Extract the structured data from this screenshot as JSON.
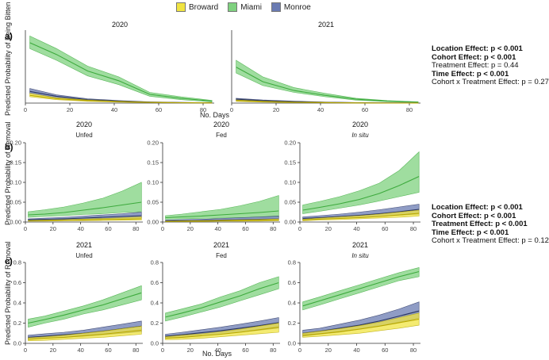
{
  "legend": {
    "items": [
      {
        "label": "Broward",
        "color": "#f0e442"
      },
      {
        "label": "Miami",
        "color": "#7fd17f"
      },
      {
        "label": "Monroe",
        "color": "#6a7bb2"
      }
    ]
  },
  "panel_labels": {
    "a": "a)",
    "b": "b)",
    "c": "c)"
  },
  "axis_labels": {
    "a_ylabel": "Predicted Probability of Being Bitten",
    "b_ylabel": "Predicted Probability of Removal",
    "c_ylabel": "Predicted Probability of Removal",
    "a_xlabel": "No. Days",
    "c_xlabel": "No. Days"
  },
  "stats": {
    "top": [
      {
        "text": "Location Effect: p < 0.001",
        "bold": true
      },
      {
        "text": "Cohort Effect: p < 0.001",
        "bold": true
      },
      {
        "text": "Treatment Effect: p = 0.44",
        "bold": false
      },
      {
        "text": "Time Effect: p < 0.001",
        "bold": true
      },
      {
        "text": "Cohort x Treatment Effect: p = 0.27",
        "bold": false
      }
    ],
    "bottom": [
      {
        "text": "Location Effect: p < 0.001",
        "bold": true
      },
      {
        "text": "Cohort Effect: p < 0.001",
        "bold": true
      },
      {
        "text": "Treatment Effect: p < 0.001",
        "bold": true
      },
      {
        "text": "Time Effect: p < 0.001",
        "bold": true
      },
      {
        "text": "Cohort x Treatment Effect: p = 0.12",
        "bold": false
      }
    ]
  },
  "colors": {
    "Broward": {
      "fill": "#f0e442",
      "line": "#b8a800"
    },
    "Miami": {
      "fill": "#7fd17f",
      "line": "#3daa3d"
    },
    "Monroe": {
      "fill": "#6a7bb2",
      "line": "#2a3560"
    }
  },
  "chart_data": [
    {
      "id": "a-2020",
      "type": "line",
      "title": "2020",
      "subtitle": "",
      "xlabel": "No. Days",
      "ylabel": "Predicted Probability of Being Bitten",
      "xlim": [
        0,
        85
      ],
      "ylim": [
        0,
        0.75
      ],
      "xticks": [
        0,
        20,
        40,
        60,
        80
      ],
      "yticks": [],
      "x": [
        2,
        14,
        28,
        42,
        56,
        70,
        84
      ],
      "series": [
        {
          "name": "Miami",
          "values": [
            0.62,
            0.5,
            0.33,
            0.23,
            0.09,
            0.05,
            0.02
          ],
          "lower": [
            0.56,
            0.44,
            0.28,
            0.19,
            0.07,
            0.035,
            0.012
          ],
          "upper": [
            0.69,
            0.56,
            0.38,
            0.27,
            0.11,
            0.065,
            0.028
          ]
        },
        {
          "name": "Monroe",
          "values": [
            0.12,
            0.07,
            0.035,
            0.02,
            0.01,
            0.005,
            0.003
          ],
          "lower": [
            0.1,
            0.055,
            0.028,
            0.015,
            0.007,
            0.003,
            0.002
          ],
          "upper": [
            0.15,
            0.085,
            0.045,
            0.026,
            0.013,
            0.007,
            0.004
          ]
        },
        {
          "name": "Broward",
          "values": [
            0.08,
            0.045,
            0.025,
            0.014,
            0.007,
            0.004,
            0.002
          ],
          "lower": [
            0.065,
            0.035,
            0.018,
            0.01,
            0.005,
            0.002,
            0.001
          ],
          "upper": [
            0.1,
            0.055,
            0.032,
            0.018,
            0.01,
            0.005,
            0.003
          ]
        }
      ]
    },
    {
      "id": "a-2021",
      "type": "line",
      "title": "2021",
      "subtitle": "",
      "xlabel": "No. Days",
      "ylabel": "",
      "xlim": [
        0,
        85
      ],
      "ylim": [
        0,
        0.75
      ],
      "xticks": [
        0,
        20,
        40,
        60,
        80
      ],
      "yticks": [],
      "x": [
        2,
        14,
        28,
        42,
        56,
        70,
        84
      ],
      "series": [
        {
          "name": "Miami",
          "values": [
            0.37,
            0.22,
            0.13,
            0.08,
            0.04,
            0.02,
            0.01
          ],
          "lower": [
            0.31,
            0.18,
            0.11,
            0.065,
            0.03,
            0.015,
            0.007
          ],
          "upper": [
            0.44,
            0.27,
            0.16,
            0.1,
            0.05,
            0.026,
            0.013
          ]
        },
        {
          "name": "Monroe",
          "values": [
            0.04,
            0.025,
            0.015,
            0.008,
            0.004,
            0.002,
            0.001
          ],
          "lower": [
            0.03,
            0.018,
            0.01,
            0.005,
            0.003,
            0.001,
            0.0005
          ],
          "upper": [
            0.05,
            0.032,
            0.02,
            0.011,
            0.006,
            0.003,
            0.0015
          ]
        },
        {
          "name": "Broward",
          "values": [
            0.025,
            0.015,
            0.008,
            0.005,
            0.002,
            0.001,
            0.0005
          ],
          "lower": [
            0.018,
            0.01,
            0.005,
            0.003,
            0.0015,
            0.0007,
            0.0003
          ],
          "upper": [
            0.032,
            0.02,
            0.011,
            0.007,
            0.003,
            0.0015,
            0.0008
          ]
        }
      ]
    },
    {
      "id": "b-unfed",
      "type": "line",
      "title": "2020",
      "subtitle": "Unfed",
      "xlabel": "",
      "ylabel": "Predicted Probability of Removal",
      "xlim": [
        0,
        85
      ],
      "ylim": [
        0,
        0.2
      ],
      "xticks": [
        0,
        20,
        40,
        60,
        80
      ],
      "yticks": [
        0,
        0.05,
        0.1,
        0.15,
        0.2
      ],
      "x": [
        2,
        14,
        28,
        42,
        56,
        70,
        84
      ],
      "series": [
        {
          "name": "Miami",
          "values": [
            0.018,
            0.02,
            0.024,
            0.03,
            0.036,
            0.043,
            0.05
          ],
          "lower": [
            0.012,
            0.014,
            0.016,
            0.019,
            0.021,
            0.024,
            0.026
          ],
          "upper": [
            0.026,
            0.031,
            0.038,
            0.048,
            0.06,
            0.078,
            0.1
          ]
        },
        {
          "name": "Monroe",
          "values": [
            0.006,
            0.007,
            0.008,
            0.01,
            0.012,
            0.014,
            0.016
          ],
          "lower": [
            0.004,
            0.005,
            0.006,
            0.007,
            0.008,
            0.009,
            0.01
          ],
          "upper": [
            0.008,
            0.01,
            0.012,
            0.015,
            0.018,
            0.021,
            0.025
          ]
        },
        {
          "name": "Broward",
          "values": [
            0.003,
            0.0035,
            0.004,
            0.005,
            0.006,
            0.007,
            0.008
          ],
          "lower": [
            0.002,
            0.0025,
            0.003,
            0.0035,
            0.004,
            0.0045,
            0.005
          ],
          "upper": [
            0.004,
            0.005,
            0.006,
            0.0075,
            0.009,
            0.011,
            0.013
          ]
        }
      ]
    },
    {
      "id": "b-fed",
      "type": "line",
      "title": "2020",
      "subtitle": "Fed",
      "xlabel": "",
      "ylabel": "",
      "xlim": [
        0,
        85
      ],
      "ylim": [
        0,
        0.2
      ],
      "xticks": [
        0,
        20,
        40,
        60,
        80
      ],
      "yticks": [
        0,
        0.05,
        0.1,
        0.15,
        0.2
      ],
      "x": [
        2,
        14,
        28,
        42,
        56,
        70,
        84
      ],
      "series": [
        {
          "name": "Miami",
          "values": [
            0.011,
            0.013,
            0.015,
            0.018,
            0.021,
            0.024,
            0.028
          ],
          "lower": [
            0.007,
            0.008,
            0.009,
            0.01,
            0.011,
            0.012,
            0.013
          ],
          "upper": [
            0.016,
            0.02,
            0.026,
            0.032,
            0.041,
            0.052,
            0.067
          ]
        },
        {
          "name": "Monroe",
          "values": [
            0.003,
            0.0035,
            0.004,
            0.005,
            0.006,
            0.007,
            0.008
          ],
          "lower": [
            0.002,
            0.002,
            0.0025,
            0.003,
            0.0035,
            0.004,
            0.004
          ],
          "upper": [
            0.005,
            0.006,
            0.007,
            0.009,
            0.011,
            0.013,
            0.015
          ]
        },
        {
          "name": "Broward",
          "values": [
            0.0015,
            0.002,
            0.0025,
            0.003,
            0.0035,
            0.004,
            0.005
          ],
          "lower": [
            0.001,
            0.001,
            0.0015,
            0.002,
            0.002,
            0.0025,
            0.003
          ],
          "upper": [
            0.002,
            0.003,
            0.0035,
            0.0045,
            0.0055,
            0.0065,
            0.008
          ]
        }
      ]
    },
    {
      "id": "b-insitu",
      "type": "line",
      "title": "2020",
      "subtitle": "In situ",
      "xlabel": "",
      "ylabel": "",
      "xlim": [
        0,
        85
      ],
      "ylim": [
        0,
        0.2
      ],
      "xticks": [
        0,
        20,
        40,
        60,
        80
      ],
      "yticks": [
        0,
        0.05,
        0.1,
        0.15,
        0.2
      ],
      "x": [
        2,
        14,
        28,
        42,
        56,
        70,
        84
      ],
      "series": [
        {
          "name": "Miami",
          "values": [
            0.03,
            0.037,
            0.046,
            0.057,
            0.072,
            0.092,
            0.115
          ],
          "lower": [
            0.021,
            0.027,
            0.035,
            0.043,
            0.053,
            0.064,
            0.075
          ],
          "upper": [
            0.043,
            0.052,
            0.064,
            0.079,
            0.098,
            0.13,
            0.177
          ]
        },
        {
          "name": "Monroe",
          "values": [
            0.009,
            0.011,
            0.014,
            0.017,
            0.021,
            0.026,
            0.032
          ],
          "lower": [
            0.006,
            0.008,
            0.01,
            0.012,
            0.014,
            0.017,
            0.02
          ],
          "upper": [
            0.013,
            0.016,
            0.02,
            0.025,
            0.031,
            0.038,
            0.045
          ]
        },
        {
          "name": "Broward",
          "values": [
            0.005,
            0.007,
            0.009,
            0.011,
            0.014,
            0.018,
            0.022
          ],
          "lower": [
            0.003,
            0.005,
            0.006,
            0.008,
            0.01,
            0.012,
            0.015
          ],
          "upper": [
            0.007,
            0.01,
            0.013,
            0.016,
            0.02,
            0.025,
            0.03
          ]
        }
      ]
    },
    {
      "id": "c-unfed",
      "type": "line",
      "title": "2021",
      "subtitle": "Unfed",
      "xlabel": "",
      "ylabel": "Predicted Probability of Removal",
      "xlim": [
        0,
        85
      ],
      "ylim": [
        0,
        0.8
      ],
      "xticks": [
        0,
        20,
        40,
        60,
        80
      ],
      "yticks": [
        0,
        0.2,
        0.4,
        0.6,
        0.8
      ],
      "x": [
        2,
        14,
        28,
        42,
        56,
        70,
        84
      ],
      "series": [
        {
          "name": "Miami",
          "values": [
            0.2,
            0.235,
            0.28,
            0.33,
            0.38,
            0.44,
            0.5
          ],
          "lower": [
            0.16,
            0.2,
            0.24,
            0.29,
            0.33,
            0.38,
            0.43
          ],
          "upper": [
            0.24,
            0.27,
            0.32,
            0.37,
            0.43,
            0.5,
            0.57
          ]
        },
        {
          "name": "Monroe",
          "values": [
            0.06,
            0.07,
            0.085,
            0.1,
            0.12,
            0.145,
            0.17
          ],
          "lower": [
            0.04,
            0.05,
            0.06,
            0.07,
            0.085,
            0.1,
            0.115
          ],
          "upper": [
            0.08,
            0.095,
            0.11,
            0.13,
            0.16,
            0.19,
            0.22
          ]
        },
        {
          "name": "Broward",
          "values": [
            0.04,
            0.05,
            0.06,
            0.075,
            0.09,
            0.11,
            0.13
          ],
          "lower": [
            0.025,
            0.03,
            0.04,
            0.05,
            0.06,
            0.075,
            0.09
          ],
          "upper": [
            0.055,
            0.065,
            0.08,
            0.1,
            0.12,
            0.145,
            0.17
          ]
        }
      ]
    },
    {
      "id": "c-fed",
      "type": "line",
      "title": "2021",
      "subtitle": "Fed",
      "xlabel": "No. Days",
      "ylabel": "",
      "xlim": [
        0,
        85
      ],
      "ylim": [
        0,
        0.8
      ],
      "xticks": [
        0,
        20,
        40,
        60,
        80
      ],
      "yticks": [
        0,
        0.2,
        0.4,
        0.6,
        0.8
      ],
      "x": [
        2,
        14,
        28,
        42,
        56,
        70,
        84
      ],
      "series": [
        {
          "name": "Miami",
          "values": [
            0.26,
            0.3,
            0.35,
            0.41,
            0.47,
            0.54,
            0.6
          ],
          "lower": [
            0.22,
            0.26,
            0.31,
            0.36,
            0.42,
            0.48,
            0.54
          ],
          "upper": [
            0.3,
            0.34,
            0.39,
            0.46,
            0.52,
            0.6,
            0.66
          ]
        },
        {
          "name": "Monroe",
          "values": [
            0.07,
            0.085,
            0.105,
            0.125,
            0.15,
            0.175,
            0.205
          ],
          "lower": [
            0.05,
            0.06,
            0.075,
            0.09,
            0.11,
            0.13,
            0.15
          ],
          "upper": [
            0.09,
            0.11,
            0.135,
            0.16,
            0.19,
            0.22,
            0.255
          ]
        },
        {
          "name": "Broward",
          "values": [
            0.05,
            0.06,
            0.075,
            0.09,
            0.11,
            0.135,
            0.16
          ],
          "lower": [
            0.035,
            0.04,
            0.05,
            0.065,
            0.08,
            0.095,
            0.11
          ],
          "upper": [
            0.065,
            0.08,
            0.095,
            0.115,
            0.14,
            0.17,
            0.2
          ]
        }
      ]
    },
    {
      "id": "c-insitu",
      "type": "line",
      "title": "2021",
      "subtitle": "In situ",
      "xlabel": "",
      "ylabel": "",
      "xlim": [
        0,
        85
      ],
      "ylim": [
        0,
        0.8
      ],
      "xticks": [
        0,
        20,
        40,
        60,
        80
      ],
      "yticks": [
        0,
        0.2,
        0.4,
        0.6,
        0.8
      ],
      "x": [
        2,
        14,
        28,
        42,
        56,
        70,
        84
      ],
      "series": [
        {
          "name": "Miami",
          "values": [
            0.37,
            0.42,
            0.48,
            0.54,
            0.6,
            0.66,
            0.71
          ],
          "lower": [
            0.33,
            0.38,
            0.44,
            0.5,
            0.56,
            0.62,
            0.66
          ],
          "upper": [
            0.41,
            0.46,
            0.52,
            0.58,
            0.64,
            0.7,
            0.75
          ]
        },
        {
          "name": "Monroe",
          "values": [
            0.1,
            0.12,
            0.15,
            0.18,
            0.22,
            0.27,
            0.32
          ],
          "lower": [
            0.07,
            0.09,
            0.11,
            0.14,
            0.17,
            0.21,
            0.25
          ],
          "upper": [
            0.13,
            0.15,
            0.19,
            0.23,
            0.28,
            0.34,
            0.41
          ]
        },
        {
          "name": "Broward",
          "values": [
            0.08,
            0.095,
            0.115,
            0.14,
            0.17,
            0.205,
            0.24
          ],
          "lower": [
            0.06,
            0.07,
            0.085,
            0.1,
            0.125,
            0.15,
            0.18
          ],
          "upper": [
            0.1,
            0.12,
            0.145,
            0.175,
            0.21,
            0.255,
            0.3
          ]
        }
      ]
    }
  ]
}
